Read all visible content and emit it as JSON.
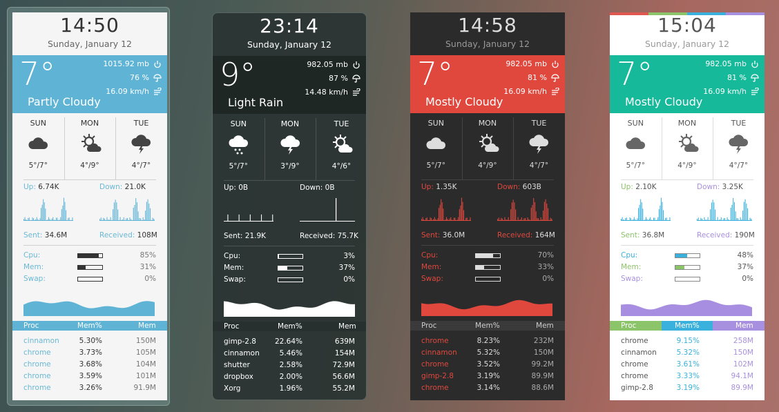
{
  "widgets": [
    {
      "time": "14:50",
      "date": "Sunday, January 12",
      "temp": "7°",
      "pressure": "1015.92 mb",
      "humidity": "76 %",
      "wind": "16.09 km/h",
      "condition": "Partly Cloudy",
      "forecast": [
        {
          "day": "SUN",
          "icon": "cloud",
          "temps": "5°/7°"
        },
        {
          "day": "MON",
          "icon": "sun-cloud",
          "temps": "4°/9°"
        },
        {
          "day": "TUE",
          "icon": "storm",
          "temps": "4°/7°"
        }
      ],
      "net": {
        "up_label": "Up:",
        "up": "6.74K",
        "down_label": "Down:",
        "down": "21.0K",
        "sent_label": "Sent:",
        "sent": "34.6M",
        "received_label": "Received:",
        "received": "108M"
      },
      "stats": [
        {
          "label": "Cpu:",
          "value": "85%",
          "percent": 85
        },
        {
          "label": "Mem:",
          "value": "31%",
          "percent": 31
        },
        {
          "label": "Swap:",
          "value": "0%",
          "percent": 0
        }
      ],
      "proc_headers": [
        "Proc",
        "Mem%",
        "Mem"
      ],
      "procs": [
        [
          "cinnamon",
          "5.30%",
          "150M"
        ],
        [
          "chrome",
          "3.73%",
          "105M"
        ],
        [
          "chrome",
          "3.68%",
          "104M"
        ],
        [
          "chrome",
          "3.59%",
          "101M"
        ],
        [
          "chrome",
          "3.26%",
          "91.9M"
        ]
      ],
      "theme": {
        "bg": "#f5f5f5",
        "text": "#333333",
        "date": "#666666",
        "band": "#5fb4d6",
        "band_text": "#ffffff",
        "sep": "#cfcfcf",
        "net_labels": [
          "#6ab8d4",
          "#6ab8d4",
          "#6ab8d4",
          "#6ab8d4"
        ],
        "stat_labels": [
          "#6ab8d4",
          "#6ab8d4",
          "#6ab8d4"
        ],
        "bar_fill": [
          "#333333",
          "#333333",
          "#333333"
        ],
        "bar_border": "#333333",
        "graph": "#5fb4d6",
        "header_bgs": [
          "#5fb4d6",
          "#5fb4d6",
          "#5fb4d6"
        ],
        "header_text": "#ffffff",
        "cols": [
          "#6ab8d4",
          "#333333",
          "#777777"
        ],
        "icon": "#444444",
        "pct": "#777777"
      }
    },
    {
      "time": "23:14",
      "date": "Sunday, January 12",
      "temp": "9°",
      "pressure": "982.05 mb",
      "humidity": "87 %",
      "wind": "14.48 km/h",
      "condition": "Light Rain",
      "forecast": [
        {
          "day": "SUN",
          "icon": "rain",
          "temps": "5°/7°"
        },
        {
          "day": "MON",
          "icon": "storm",
          "temps": "3°/9°"
        },
        {
          "day": "TUE",
          "icon": "sun-cloud",
          "temps": "4°/6°"
        }
      ],
      "net": {
        "up_label": "Up:",
        "up": "0B",
        "down_label": "Down:",
        "down": "0B",
        "sent_label": "Sent:",
        "sent": "21.9K",
        "received_label": "Received:",
        "received": "75.7K"
      },
      "stats": [
        {
          "label": "Cpu:",
          "value": "3%",
          "percent": 3
        },
        {
          "label": "Mem:",
          "value": "37%",
          "percent": 37
        },
        {
          "label": "Swap:",
          "value": "0%",
          "percent": 0
        }
      ],
      "proc_headers": [
        "Proc",
        "Mem%",
        "Mem"
      ],
      "procs": [
        [
          "gimp-2.8",
          "22.64%",
          "639M"
        ],
        [
          "cinnamon",
          "5.46%",
          "154M"
        ],
        [
          "shutter",
          "2.58%",
          "72.9M"
        ],
        [
          "dropbox",
          "2.00%",
          "56.6M"
        ],
        [
          "Xorg",
          "1.96%",
          "55.2M"
        ]
      ],
      "theme": {
        "bg": "rgba(42,52,50,0.93)",
        "text": "#ffffff",
        "date": "#ffffff",
        "band": "rgba(30,38,36,0.9)",
        "band_text": "#ffffff",
        "sep": "#4a5553",
        "net_labels": [
          "#ffffff",
          "#ffffff",
          "#ffffff",
          "#ffffff"
        ],
        "stat_labels": [
          "#ffffff",
          "#ffffff",
          "#ffffff"
        ],
        "bar_fill": [
          "#ffffff",
          "#ffffff",
          "#ffffff"
        ],
        "bar_border": "#ffffff",
        "graph": "#ffffff",
        "header_bgs": [
          "#27302e",
          "#27302e",
          "#27302e"
        ],
        "header_text": "#ffffff",
        "cols": [
          "#ffffff",
          "#ffffff",
          "#ffffff"
        ],
        "icon": "#ffffff",
        "pct": "#ffffff"
      }
    },
    {
      "time": "14:58",
      "date": "Sunday, January 12",
      "temp": "7°",
      "pressure": "982.05 mb",
      "humidity": "81 %",
      "wind": "16.09 km/h",
      "condition": "Mostly Cloudy",
      "forecast": [
        {
          "day": "SUN",
          "icon": "cloud",
          "temps": "5°/7°"
        },
        {
          "day": "MON",
          "icon": "sun-cloud",
          "temps": "4°/9°"
        },
        {
          "day": "TUE",
          "icon": "storm",
          "temps": "4°/7°"
        }
      ],
      "net": {
        "up_label": "Up:",
        "up": "1.35K",
        "down_label": "Down:",
        "down": "603B",
        "sent_label": "Sent:",
        "sent": "36.0M",
        "received_label": "Received:",
        "received": "164M"
      },
      "stats": [
        {
          "label": "Cpu:",
          "value": "70%",
          "percent": 70
        },
        {
          "label": "Mem:",
          "value": "33%",
          "percent": 33
        },
        {
          "label": "Swap:",
          "value": "0%",
          "percent": 0
        }
      ],
      "proc_headers": [
        "Proc",
        "Mem%",
        "Mem"
      ],
      "procs": [
        [
          "chrome",
          "8.23%",
          "232M"
        ],
        [
          "cinnamon",
          "5.32%",
          "150M"
        ],
        [
          "chrome",
          "3.52%",
          "99.2M"
        ],
        [
          "gimp-2.8",
          "3.19%",
          "89.9M"
        ],
        [
          "chrome",
          "3.14%",
          "88.6M"
        ]
      ],
      "theme": {
        "bg": "#2b2b2b",
        "text": "#dddddd",
        "date": "#999999",
        "band": "#e0483e",
        "band_text": "#ffffff",
        "sep": "#444444",
        "net_labels": [
          "#e0483e",
          "#e0483e",
          "#e0483e",
          "#e0483e"
        ],
        "stat_labels": [
          "#e0483e",
          "#e0483e",
          "#e0483e"
        ],
        "bar_fill": [
          "#dddddd",
          "#dddddd",
          "#dddddd"
        ],
        "bar_border": "#dddddd",
        "graph": "#e0483e",
        "header_bgs": [
          "#3a3a3a",
          "#3a3a3a",
          "#3a3a3a"
        ],
        "header_text": "#cccccc",
        "cols": [
          "#e0483e",
          "#dddddd",
          "#aaaaaa"
        ],
        "icon": "#dddddd",
        "pct": "#aaaaaa"
      }
    },
    {
      "time": "15:04",
      "date": "Sunday, January 12",
      "temp": "7°",
      "pressure": "982.05 mb",
      "humidity": "81 %",
      "wind": "16.09 km/h",
      "condition": "Mostly Cloudy",
      "forecast": [
        {
          "day": "SUN",
          "icon": "cloud",
          "temps": "5°/7°"
        },
        {
          "day": "MON",
          "icon": "sun-cloud",
          "temps": "4°/9°"
        },
        {
          "day": "TUE",
          "icon": "storm",
          "temps": "4°/7°"
        }
      ],
      "net": {
        "up_label": "Up:",
        "up": "2.10K",
        "down_label": "Down:",
        "down": "3.25K",
        "sent_label": "Sent:",
        "sent": "36.8M",
        "received_label": "Received:",
        "received": "190M"
      },
      "stats": [
        {
          "label": "Cpu:",
          "value": "48%",
          "percent": 48
        },
        {
          "label": "Mem:",
          "value": "37%",
          "percent": 37
        },
        {
          "label": "Swap:",
          "value": "0%",
          "percent": 0
        }
      ],
      "proc_headers": [
        "Proc",
        "Mem%",
        "Mem"
      ],
      "procs": [
        [
          "chrome",
          "9.15%",
          "258M"
        ],
        [
          "cinnamon",
          "5.32%",
          "150M"
        ],
        [
          "chrome",
          "3.61%",
          "102M"
        ],
        [
          "chrome",
          "3.33%",
          "94.1M"
        ],
        [
          "gimp-2.8",
          "3.19%",
          "89.9M"
        ]
      ],
      "theme": {
        "bg": "#ffffff",
        "text": "#555555",
        "date": "#999999",
        "band": "#16b99a",
        "band_text": "#ffffff",
        "sep": "#dddddd",
        "net_labels": [
          "#8cc46a",
          "#a890e0",
          "#8cc46a",
          "#a890e0"
        ],
        "stat_labels": [
          "#3ab0dc",
          "#8cc46a",
          "#a890e0"
        ],
        "bar_fill": [
          "#3ab0dc",
          "#8cc46a",
          "#a890e0"
        ],
        "bar_border": "#888888",
        "graph": "#3ab0dc",
        "graph2": "#a88ee0",
        "header_bgs": [
          "#8cc46a",
          "#3ab0dc",
          "#a890e0"
        ],
        "header_text": "#ffffff",
        "cols": [
          "#555555",
          "#3ab0dc",
          "#a890e0"
        ],
        "icon": "#666666",
        "pct": "#555555",
        "top_bar": [
          "#e0574f",
          "#8cc46a",
          "#3ab0dc",
          "#a890e0"
        ]
      }
    }
  ]
}
